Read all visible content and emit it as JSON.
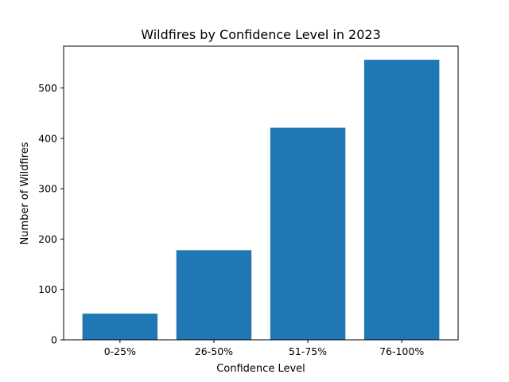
{
  "chart_data": {
    "type": "bar",
    "title": "Wildfires by Confidence Level in 2023",
    "xlabel": "Confidence Level",
    "ylabel": "Number of Wildfires",
    "categories": [
      "0-25%",
      "26-50%",
      "51-75%",
      "76-100%"
    ],
    "values": [
      52,
      178,
      421,
      556
    ],
    "ylim": [
      0,
      583
    ],
    "yticks": [
      0,
      100,
      200,
      300,
      400,
      500
    ],
    "bar_color": "#1f77b4",
    "grid": false,
    "legend": false
  }
}
